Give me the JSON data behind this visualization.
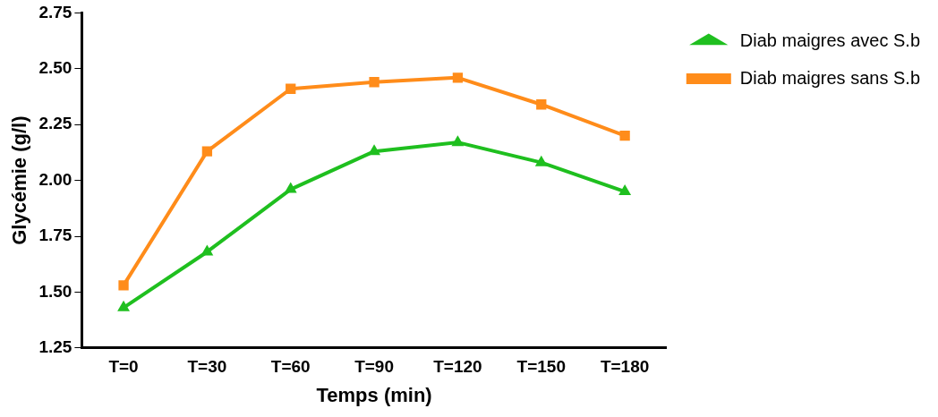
{
  "chart_data": {
    "type": "line",
    "xlabel": "Temps (min)",
    "ylabel": "Glycémie (g/l)",
    "categories": [
      "T=0",
      "T=30",
      "T=60",
      "T=90",
      "T=120",
      "T=150",
      "T=180"
    ],
    "series": [
      {
        "name": "Diab maigres avec S.b",
        "color": "#1fbf1f",
        "marker": "triangle",
        "values": [
          1.43,
          1.68,
          1.96,
          2.13,
          2.17,
          2.08,
          1.95
        ]
      },
      {
        "name": "Diab maigres sans S.b",
        "color": "#ff8c1a",
        "marker": "square",
        "values": [
          1.53,
          2.13,
          2.41,
          2.44,
          2.46,
          2.34,
          2.2
        ]
      }
    ],
    "ylim": [
      1.25,
      2.75
    ],
    "yticks": [
      1.25,
      {
        "value": 1.5,
        "label": "1.50"
      },
      1.75,
      {
        "value": 2,
        "label": "2.00"
      },
      2.25,
      {
        "value": 2.5,
        "label": "2.50"
      },
      2.75
    ],
    "grid": false,
    "legend": "top right",
    "line_style": "solid"
  }
}
